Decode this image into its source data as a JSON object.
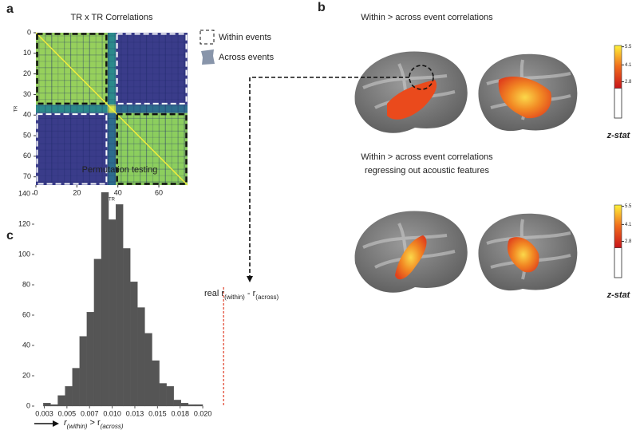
{
  "panel_labels": [
    "a",
    "b",
    "c"
  ],
  "chart_data": [
    {
      "type": "heatmap",
      "title": "TR x TR Correlations",
      "x_label": "TR",
      "y_label": "TR",
      "boundaries": [
        0,
        35,
        39,
        74
      ],
      "cell_colors": [
        [
          "#96d05c",
          "#2c8a8b",
          "#3a3c8a"
        ],
        [
          "#2c8a8b",
          "#c9e04c",
          "#2d6c8d"
        ],
        [
          "#3a3c8a",
          "#2d6c8d",
          "#8cce5e"
        ]
      ],
      "diagonal_color": "#f3ec3c",
      "events": [
        [
          0,
          35
        ],
        [
          39,
          74
        ]
      ],
      "xlim": [
        0,
        74
      ],
      "ylim": [
        74,
        0
      ],
      "xticks": [
        0,
        20,
        40,
        60
      ],
      "yticks": [
        0,
        10,
        20,
        30,
        40,
        50,
        60,
        70
      ],
      "legend": [
        "Within events",
        "Across events"
      ]
    },
    {
      "type": "histogram",
      "title": "Permutation testing",
      "color": "#555555",
      "bins": [
        0.0024,
        0.0032,
        0.004,
        0.0048,
        0.0056,
        0.0064,
        0.0072,
        0.008,
        0.0088,
        0.0096,
        0.0104,
        0.0112,
        0.012,
        0.0128,
        0.0136,
        0.0144,
        0.0152,
        0.016,
        0.0168,
        0.0176,
        0.0184,
        0.0192,
        0.02
      ],
      "counts": [
        2,
        1,
        7,
        13,
        25,
        46,
        62,
        97,
        141,
        123,
        133,
        104,
        82,
        65,
        48,
        30,
        15,
        13,
        4,
        2,
        1,
        1
      ],
      "xlim": [
        0.0014,
        0.0229
      ],
      "ylim": [
        0,
        145
      ],
      "xticks": [
        {
          "value": 0.0025,
          "label": "0.003"
        },
        0.005,
        {
          "value": 0.0075,
          "label": "0.007"
        },
        {
          "value": 0.01,
          "label": "0.010"
        },
        {
          "value": 0.0125,
          "label": "0.013"
        },
        0.015,
        {
          "value": 0.0175,
          "label": "0.018"
        },
        {
          "value": 0.02,
          "label": "0.020"
        }
      ],
      "yticks": [
        0,
        20,
        40,
        60,
        80,
        100,
        120,
        140
      ],
      "reference": {
        "value": 0.0223,
        "color": "#e0402a",
        "label": [
          "real r",
          "(within)",
          " - ",
          "r",
          "(across)"
        ]
      },
      "x_label": [
        "r",
        "(within)",
        " > r",
        "(across)"
      ]
    }
  ],
  "brain_maps": [
    {
      "title": [
        "Within > across event correlations"
      ],
      "colorbar": {
        "clim": [
          0,
          5.6
        ],
        "threshold": 2.3,
        "ticks": [
          5.5,
          4.1,
          2.8
        ],
        "label": "z-stat"
      }
    },
    {
      "title": [
        "Within > across event correlations",
        "regressing out acoustic features"
      ],
      "colorbar": {
        "clim": [
          0,
          5.6
        ],
        "threshold": 2.3,
        "ticks": [
          5.5,
          4.1,
          2.8
        ],
        "label": "z-stat"
      }
    }
  ]
}
